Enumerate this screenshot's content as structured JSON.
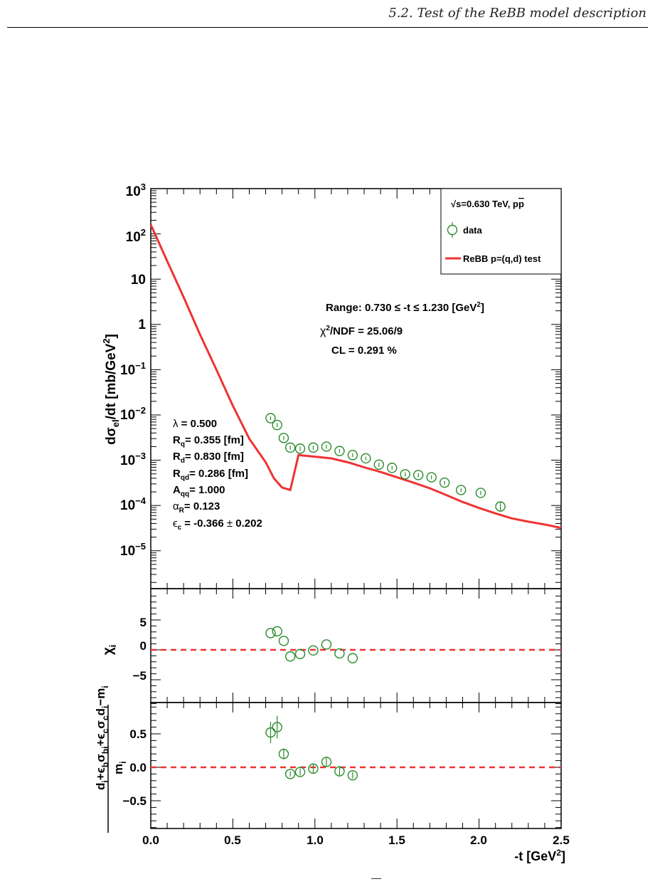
{
  "header": {
    "section_title": "5.2. Test of the ReBB model description"
  },
  "legend": {
    "title": "√s=0.630 TeV, pp̅",
    "title_base": "s=0.630 TeV, p",
    "title_pbar": "p",
    "data_label": "data",
    "model_label": "ReBB p=(q,d) test"
  },
  "fit_info": {
    "range": "Range: 0.730 ≤ -t ≤ 1.230 [GeV²]",
    "range_text": "Range: 0.730 ≤ -t ≤ 1.230 [GeV",
    "chi2_label": "χ²/NDF = 25.06/9",
    "chi2_text": "/NDF = 25.06/9",
    "cl_label": "CL = 0.291 %"
  },
  "parameters": {
    "lambda": "λ = 0.500",
    "Rq": "Rq = 0.355 [fm]",
    "Rd": "Rd = 0.830 [fm]",
    "Rqd": "Rqd = 0.286 [fm]",
    "Aqq": "Aqq = 1.000",
    "alphaR": "αR = 0.123",
    "eps_c": "εc = -0.366 ± 0.202",
    "lambda_value": "= 0.500",
    "Rq_value": "= 0.355 [fm]",
    "Rd_value": "= 0.830 [fm]",
    "Rqd_value": "= 0.286 [fm]",
    "Aqq_value": "= 1.000",
    "alphaR_value": "= 0.123",
    "eps_c_value": "= -0.366",
    "eps_c_error": "0.202"
  },
  "colors": {
    "data": "#2a8a2a",
    "model": "#ee3333",
    "zero_line": "#ee3333",
    "axis": "#000000"
  },
  "chart_data": [
    {
      "type": "scatter",
      "panel": "main",
      "yscale": "log",
      "xlim": [
        0,
        2.5
      ],
      "ylim": [
        1e-06,
        1000
      ],
      "ylabel": "dσel/dt [mb/GeV²]",
      "ytick_labels": [
        "10³",
        "10²",
        "10",
        "1",
        "10⁻¹",
        "10⁻²",
        "10⁻³",
        "10⁻⁴",
        "10⁻⁵"
      ],
      "series": [
        {
          "name": "data",
          "points": [
            {
              "x": 0.73,
              "y": 0.0085,
              "err": 0.0008
            },
            {
              "x": 0.77,
              "y": 0.006,
              "err": 0.0006
            },
            {
              "x": 0.81,
              "y": 0.0031,
              "err": 0.0003
            },
            {
              "x": 0.85,
              "y": 0.0019,
              "err": 0.0002
            },
            {
              "x": 0.91,
              "y": 0.0018,
              "err": 0.0002
            },
            {
              "x": 0.99,
              "y": 0.0019,
              "err": 0.0002
            },
            {
              "x": 1.07,
              "y": 0.002,
              "err": 0.0002
            },
            {
              "x": 1.15,
              "y": 0.0016,
              "err": 0.00015
            },
            {
              "x": 1.23,
              "y": 0.0013,
              "err": 0.00012
            },
            {
              "x": 1.31,
              "y": 0.0011,
              "err": 0.0001
            },
            {
              "x": 1.39,
              "y": 0.0008,
              "err": 8e-05
            },
            {
              "x": 1.47,
              "y": 0.00068,
              "err": 7e-05
            },
            {
              "x": 1.55,
              "y": 0.00049,
              "err": 5e-05
            },
            {
              "x": 1.63,
              "y": 0.00047,
              "err": 5e-05
            },
            {
              "x": 1.71,
              "y": 0.00042,
              "err": 4e-05
            },
            {
              "x": 1.79,
              "y": 0.00032,
              "err": 3e-05
            },
            {
              "x": 1.89,
              "y": 0.00022,
              "err": 2e-05
            },
            {
              "x": 2.01,
              "y": 0.00019,
              "err": 2e-05
            },
            {
              "x": 2.13,
              "y": 9.5e-05,
              "err": 2e-05
            }
          ]
        },
        {
          "name": "ReBB p=(q,d) test",
          "line": [
            [
              0.0,
              160
            ],
            [
              0.1,
              25
            ],
            [
              0.2,
              4
            ],
            [
              0.3,
              0.6
            ],
            [
              0.4,
              0.1
            ],
            [
              0.5,
              0.016
            ],
            [
              0.6,
              0.003
            ],
            [
              0.7,
              0.0009
            ],
            [
              0.75,
              0.0004
            ],
            [
              0.8,
              0.00025
            ],
            [
              0.85,
              0.00022
            ],
            [
              0.9,
              0.0013
            ],
            [
              1.0,
              0.0012
            ],
            [
              1.1,
              0.0011
            ],
            [
              1.2,
              0.0009
            ],
            [
              1.3,
              0.0007
            ],
            [
              1.4,
              0.00055
            ],
            [
              1.5,
              0.00042
            ],
            [
              1.6,
              0.00032
            ],
            [
              1.7,
              0.00024
            ],
            [
              1.8,
              0.00017
            ],
            [
              1.9,
              0.00012
            ],
            [
              2.0,
              8.8e-05
            ],
            [
              2.1,
              6.7e-05
            ],
            [
              2.2,
              5.2e-05
            ],
            [
              2.3,
              4.4e-05
            ],
            [
              2.4,
              3.8e-05
            ],
            [
              2.5,
              3.2e-05
            ]
          ]
        }
      ]
    },
    {
      "type": "scatter",
      "panel": "chi",
      "xlim": [
        0,
        2.5
      ],
      "ylim": [
        -9,
        9
      ],
      "ylabel": "χi",
      "ytick_labels": [
        "5",
        "0",
        "−5"
      ],
      "points": [
        {
          "x": 0.73,
          "y": 2.8
        },
        {
          "x": 0.77,
          "y": 3.1
        },
        {
          "x": 0.81,
          "y": 1.5
        },
        {
          "x": 0.85,
          "y": -1.1
        },
        {
          "x": 0.91,
          "y": -0.7
        },
        {
          "x": 0.99,
          "y": -0.1
        },
        {
          "x": 1.07,
          "y": 0.9
        },
        {
          "x": 1.15,
          "y": -0.6
        },
        {
          "x": 1.23,
          "y": -1.4
        }
      ]
    },
    {
      "type": "scatter",
      "panel": "residual",
      "xlim": [
        0,
        2.5
      ],
      "ylim": [
        -0.95,
        0.95
      ],
      "xlabel": "-t [GeV²]",
      "ylabel": "(di+εbσbi+εcσcdi−mi)/mi",
      "xtick_labels": [
        "0.0",
        "0.5",
        "1.0",
        "1.5",
        "2.0",
        "2.5"
      ],
      "ytick_labels": [
        "0.5",
        "0.0",
        "−0.5"
      ],
      "points": [
        {
          "x": 0.73,
          "y": 0.52,
          "err": 0.16
        },
        {
          "x": 0.77,
          "y": 0.6,
          "err": 0.17
        },
        {
          "x": 0.81,
          "y": 0.2,
          "err": 0.08
        },
        {
          "x": 0.85,
          "y": -0.1,
          "err": 0.04
        },
        {
          "x": 0.91,
          "y": -0.07,
          "err": 0.05
        },
        {
          "x": 0.99,
          "y": -0.02,
          "err": 0.07
        },
        {
          "x": 1.07,
          "y": 0.08,
          "err": 0.07
        },
        {
          "x": 1.15,
          "y": -0.06,
          "err": 0.06
        },
        {
          "x": 1.23,
          "y": -0.12,
          "err": 0.05
        }
      ]
    }
  ]
}
